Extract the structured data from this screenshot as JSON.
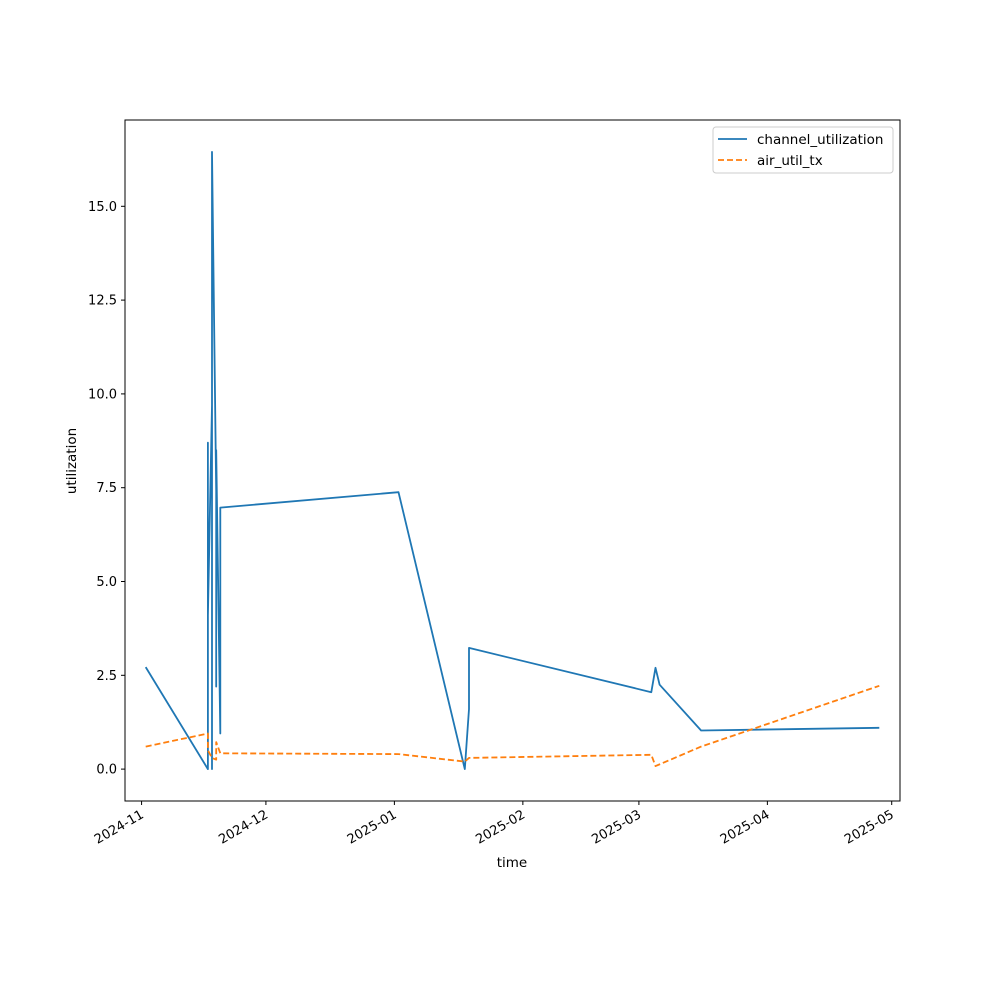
{
  "chart_data": {
    "type": "line",
    "title": "",
    "xlabel": "time",
    "ylabel": "utilization",
    "x_ticks": [
      "2024-11",
      "2024-12",
      "2025-01",
      "2025-02",
      "2025-03",
      "2025-04",
      "2025-05"
    ],
    "y_ticks": [
      "0.0",
      "2.5",
      "5.0",
      "7.5",
      "10.0",
      "12.5",
      "15.0"
    ],
    "xlim": [
      "2024-10-28",
      "2025-05-03"
    ],
    "ylim": [
      -0.85,
      17.3
    ],
    "grid": false,
    "legend_position": "top-right",
    "series": [
      {
        "name": "channel_utilization",
        "color": "#1f77b4",
        "style": "solid",
        "points": [
          [
            "2024-11-02",
            2.72
          ],
          [
            "2024-11-17",
            0.0
          ],
          [
            "2024-11-17",
            8.7
          ],
          [
            "2024-11-17",
            4.1
          ],
          [
            "2024-11-18",
            9.7
          ],
          [
            "2024-11-18",
            0.0
          ],
          [
            "2024-11-18",
            12.0
          ],
          [
            "2024-11-18",
            16.45
          ],
          [
            "2024-11-19",
            7.4
          ],
          [
            "2024-11-19",
            2.2
          ],
          [
            "2024-11-19",
            8.5
          ],
          [
            "2024-11-20",
            0.95
          ],
          [
            "2024-11-20",
            6.97
          ],
          [
            "2025-01-02",
            7.38
          ],
          [
            "2025-01-18",
            0.0
          ],
          [
            "2025-01-19",
            1.6
          ],
          [
            "2025-01-19",
            3.23
          ],
          [
            "2025-03-04",
            2.05
          ],
          [
            "2025-03-05",
            2.7
          ],
          [
            "2025-03-06",
            2.25
          ],
          [
            "2025-03-16",
            1.03
          ],
          [
            "2025-04-28",
            1.1
          ]
        ]
      },
      {
        "name": "air_util_tx",
        "color": "#ff7f0e",
        "style": "dashed",
        "points": [
          [
            "2024-11-02",
            0.6
          ],
          [
            "2024-11-17",
            0.95
          ],
          [
            "2024-11-17",
            0.5
          ],
          [
            "2024-11-18",
            0.3
          ],
          [
            "2024-11-19",
            0.25
          ],
          [
            "2024-11-19",
            0.72
          ],
          [
            "2024-11-20",
            0.42
          ],
          [
            "2025-01-02",
            0.4
          ],
          [
            "2025-01-18",
            0.2
          ],
          [
            "2025-01-19",
            0.3
          ],
          [
            "2025-03-04",
            0.38
          ],
          [
            "2025-03-05",
            0.08
          ],
          [
            "2025-03-16",
            0.6
          ],
          [
            "2025-04-28",
            2.22
          ]
        ]
      }
    ]
  }
}
